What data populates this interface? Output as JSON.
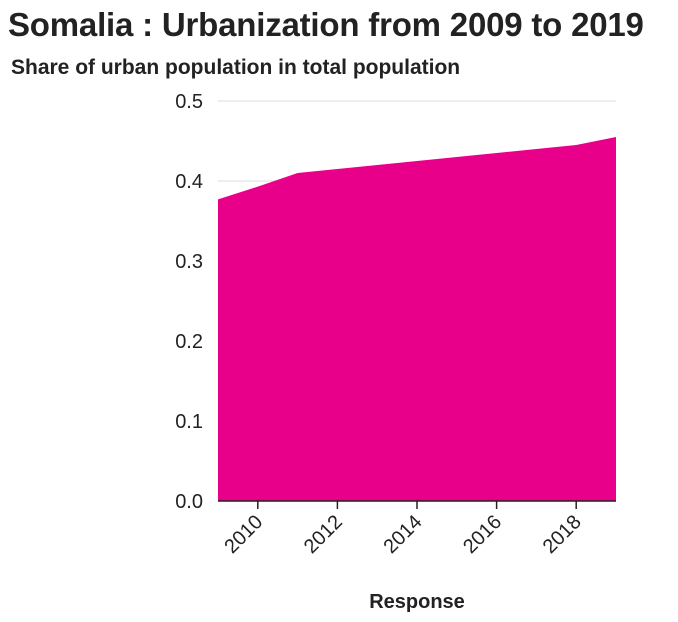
{
  "chart_data": {
    "type": "area",
    "title": "Somalia : Urbanization from 2009 to 2019",
    "subtitle": "Share of urban population in total population",
    "xlabel": "Response",
    "ylabel": "",
    "x": [
      2009,
      2010,
      2011,
      2012,
      2013,
      2014,
      2015,
      2016,
      2017,
      2018,
      2019
    ],
    "series": [
      {
        "values": [
          0.377,
          0.393,
          0.41,
          0.415,
          0.42,
          0.425,
          0.43,
          0.435,
          0.44,
          0.445,
          0.455
        ]
      }
    ],
    "xlim": [
      2009,
      2019
    ],
    "ylim": [
      0,
      0.5
    ],
    "x_ticks": [
      "2010",
      "2012",
      "2014",
      "2016",
      "2018"
    ],
    "y_ticks": [
      "0.0",
      "0.1",
      "0.2",
      "0.3",
      "0.4",
      "0.5"
    ],
    "grid": true,
    "fill_color": "#e8008a",
    "grid_color": "#dddddd",
    "axis_color": "#222222"
  }
}
